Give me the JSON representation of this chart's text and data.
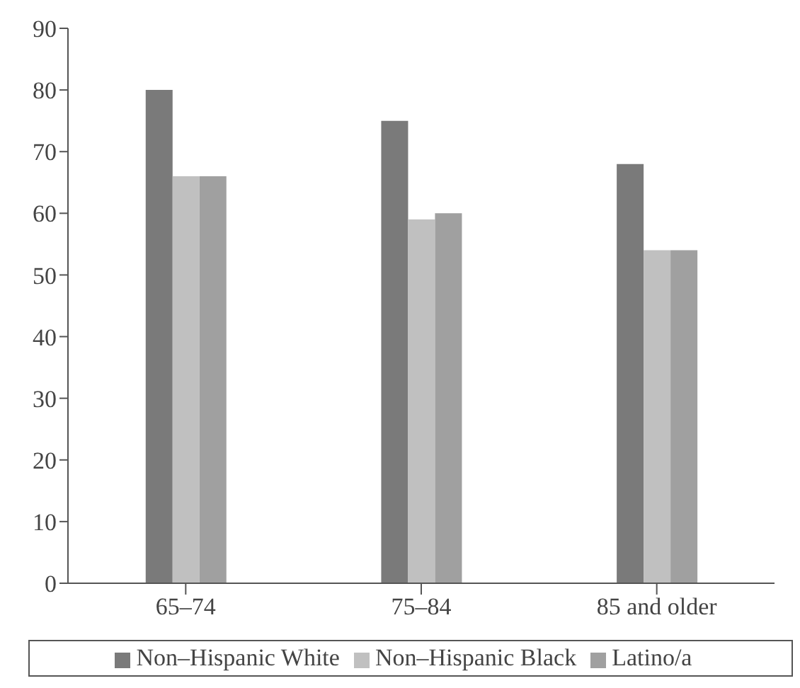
{
  "chart_data": {
    "type": "bar",
    "categories": [
      "65–74",
      "75–84",
      "85 and older"
    ],
    "series": [
      {
        "name": "Non–Hispanic White",
        "color": "#7a7a7a",
        "values": [
          80,
          75,
          68
        ]
      },
      {
        "name": "Non–Hispanic Black",
        "color": "#c0c0c0",
        "values": [
          66,
          59,
          54
        ]
      },
      {
        "name": "Latino/a",
        "color": "#a0a0a0",
        "values": [
          66,
          60,
          54
        ]
      }
    ],
    "ylim": [
      0,
      90
    ],
    "yticks": [
      0,
      10,
      20,
      30,
      40,
      50,
      60,
      70,
      80,
      90
    ],
    "grid": false,
    "legend": "bottom"
  }
}
